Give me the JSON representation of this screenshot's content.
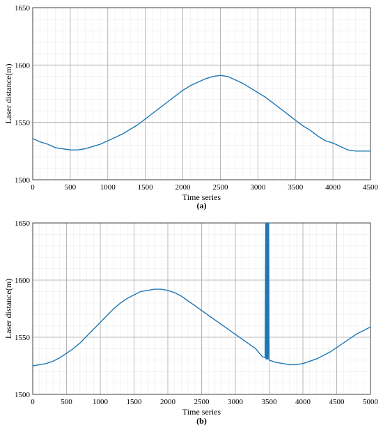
{
  "chart_data": [
    {
      "type": "line",
      "panel_label": "(a)",
      "xlabel": "Time series",
      "ylabel": "Laser distance(m)",
      "xlim": [
        0,
        4500
      ],
      "ylim": [
        1500,
        1650
      ],
      "xticks": [
        0,
        500,
        1000,
        1500,
        2000,
        2500,
        3000,
        3500,
        4000,
        4500
      ],
      "yticks": [
        1500,
        1550,
        1600,
        1650
      ],
      "grid": true,
      "series": [
        {
          "color": "#1f77b4",
          "x": [
            0,
            100,
            200,
            300,
            400,
            500,
            600,
            700,
            800,
            900,
            1000,
            1100,
            1200,
            1300,
            1400,
            1500,
            1600,
            1700,
            1800,
            1900,
            2000,
            2100,
            2200,
            2300,
            2400,
            2500,
            2600,
            2700,
            2800,
            2900,
            3000,
            3100,
            3200,
            3300,
            3400,
            3500,
            3600,
            3700,
            3800,
            3900,
            4000,
            4100,
            4200,
            4300,
            4400,
            4500
          ],
          "y": [
            1536,
            1533,
            1531,
            1528,
            1527,
            1526,
            1526,
            1527,
            1529,
            1531,
            1534,
            1537,
            1540,
            1544,
            1548,
            1553,
            1558,
            1563,
            1568,
            1573,
            1578,
            1582,
            1585,
            1588,
            1590,
            1591,
            1590,
            1587,
            1584,
            1580,
            1576,
            1572,
            1567,
            1562,
            1557,
            1552,
            1547,
            1543,
            1538,
            1534,
            1532,
            1529,
            1526,
            1525,
            1525,
            1525
          ]
        }
      ]
    },
    {
      "type": "line",
      "panel_label": "(b)",
      "xlabel": "Time series",
      "ylabel": "Laser distance(m)",
      "xlim": [
        0,
        5000
      ],
      "ylim": [
        1500,
        1650
      ],
      "xticks": [
        0,
        500,
        1000,
        1500,
        2000,
        2500,
        3000,
        3500,
        4000,
        4500,
        5000
      ],
      "yticks": [
        1500,
        1550,
        1600,
        1650
      ],
      "grid": true,
      "series": [
        {
          "color": "#1f77b4",
          "x": [
            0,
            100,
            200,
            300,
            400,
            500,
            600,
            700,
            800,
            900,
            1000,
            1100,
            1200,
            1300,
            1400,
            1500,
            1600,
            1700,
            1800,
            1900,
            2000,
            2100,
            2200,
            3300,
            3400,
            3440,
            3450,
            3455,
            3460,
            3465,
            3470,
            3475,
            3480,
            3485,
            3490,
            3500,
            3600,
            3700,
            3800,
            3900,
            4000,
            4100,
            4200,
            4300,
            4400,
            4500,
            4600,
            4700,
            4800,
            4900,
            5000
          ],
          "y": [
            1525,
            1526,
            1527,
            1529,
            1532,
            1536,
            1540,
            1545,
            1551,
            1557,
            1563,
            1569,
            1575,
            1580,
            1584,
            1587,
            1590,
            1591,
            1592,
            1592,
            1591,
            1589,
            1586,
            1540,
            1533,
            1532,
            1650,
            1531,
            1650,
            1531,
            1650,
            1531,
            1650,
            1531,
            1650,
            1530,
            1528,
            1527,
            1526,
            1526,
            1527,
            1529,
            1531,
            1534,
            1537,
            1541,
            1545,
            1549,
            1553,
            1556,
            1559
          ]
        }
      ]
    }
  ]
}
